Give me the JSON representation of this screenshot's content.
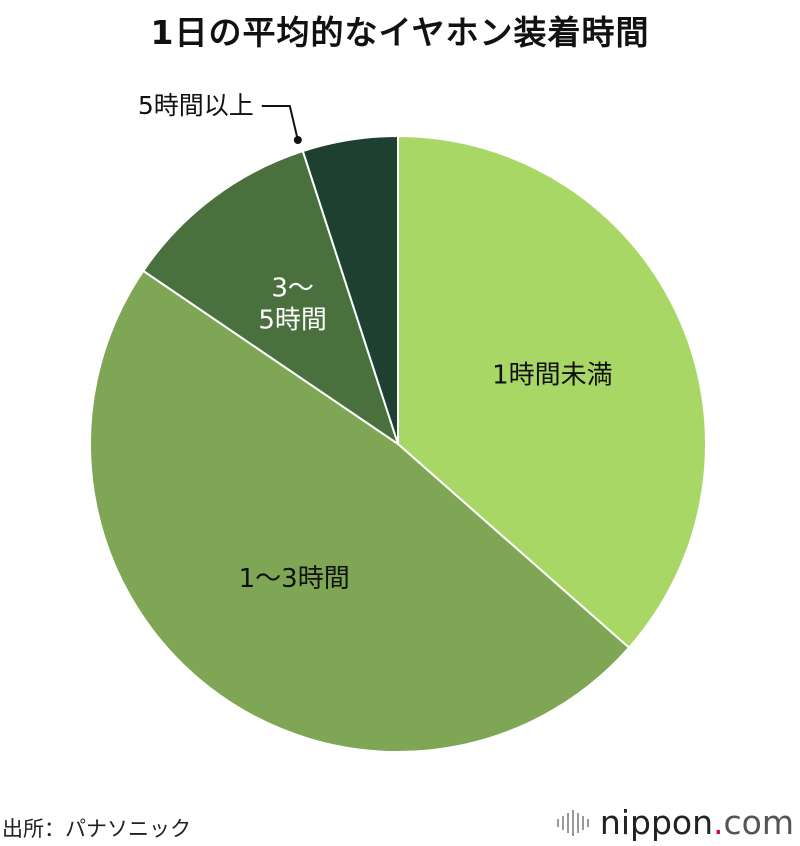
{
  "title": "1日の平均的なイヤホン装着時間",
  "source": "出所：パナソニック",
  "logo": {
    "main": "nippon",
    "dot": ".",
    "tld": "com"
  },
  "chart_data": {
    "type": "pie",
    "title": "1日の平均的なイヤホン装着時間",
    "start": "12 o'clock, clockwise",
    "slices": [
      {
        "label": "1時間未満",
        "value": 36.5,
        "color": "#a9d766",
        "label_color": "#111111"
      },
      {
        "label": "1〜3時間",
        "value": 48.0,
        "color": "#7ea654",
        "label_color": "#111111"
      },
      {
        "label": "3〜\n5時間",
        "value": 10.5,
        "color": "#4a703e",
        "label_color": "#ffffff"
      },
      {
        "label": "5時間以上",
        "value": 5.0,
        "color": "#1d4030",
        "label_color": "#111111",
        "callout": true
      }
    ],
    "legend": "none"
  }
}
